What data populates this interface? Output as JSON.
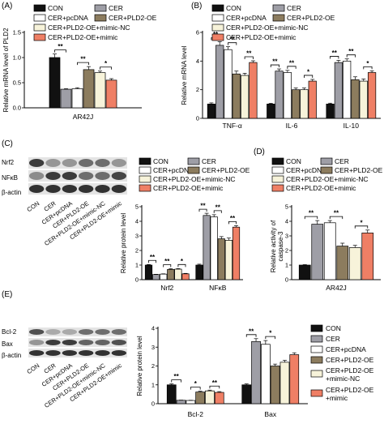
{
  "colors": {
    "CON": "#111111",
    "CER": "#9e9ea6",
    "CER+pcDNA": "#ffffff",
    "CER+PLD2-OE": "#8c7c5e",
    "CER+PLD2-OE+mimic-NC": "#f7f3da",
    "CER+PLD2-OE+mimic": "#ef7f65"
  },
  "groups": [
    "CON",
    "CER",
    "CER+pcDNA",
    "CER+PLD2-OE",
    "CER+PLD2-OE+mimic-NC",
    "CER+PLD2-OE+mimic"
  ],
  "panels": {
    "A": {
      "label": "(A)"
    },
    "B": {
      "label": "(B)"
    },
    "C": {
      "label": "(C)",
      "blot_rows": [
        "Nrf2",
        "NFκB",
        "β-actin"
      ]
    },
    "D": {
      "label": "(D)"
    },
    "E": {
      "label": "(E)",
      "blot_rows": [
        "Bcl-2",
        "Bax",
        "β-actin"
      ],
      "legend_wrapped": [
        "CON",
        "CER",
        "CER+pcDNA",
        "CER+PLD2-OE",
        "CER+PLD2-OE",
        "+mimic-NC",
        "CER+PLD2-OE",
        "+mimic"
      ]
    }
  },
  "blot_columns": [
    "CON",
    "CER",
    "CER+pcDNA",
    "CER+PLD2-OE",
    "CER+PLD2-OE+mimic-NC",
    "CER+PLD2-OE+mimic"
  ],
  "significance": "**",
  "significance_single": "*",
  "chart_data": [
    {
      "id": "A",
      "type": "bar",
      "categories": [
        "AR42J"
      ],
      "series": [
        {
          "name": "CON",
          "values": [
            1.0
          ],
          "err": [
            0.07
          ]
        },
        {
          "name": "CER",
          "values": [
            0.37
          ],
          "err": [
            0.01
          ]
        },
        {
          "name": "CER+pcDNA",
          "values": [
            0.38
          ],
          "err": [
            0.02
          ]
        },
        {
          "name": "CER+PLD2-OE",
          "values": [
            0.76
          ],
          "err": [
            0.06
          ]
        },
        {
          "name": "CER+PLD2-OE+mimic-NC",
          "values": [
            0.7
          ],
          "err": [
            0.03
          ]
        },
        {
          "name": "CER+PLD2-OE+mimic",
          "values": [
            0.55
          ],
          "err": [
            0.03
          ]
        }
      ],
      "ylabel": "Relative mRNA level of PLD2",
      "ylim": [
        0,
        1.5
      ],
      "yticks": [
        "0.0",
        "0.5",
        "1.0",
        "1.5"
      ],
      "annotations": [
        "**",
        "**",
        "*"
      ]
    },
    {
      "id": "B",
      "type": "bar",
      "categories": [
        "TNF-α",
        "IL-6",
        "IL-10"
      ],
      "series": [
        {
          "name": "CON",
          "values": [
            1.0,
            1.0,
            1.0
          ],
          "err": [
            0.08,
            0.05,
            0.06
          ]
        },
        {
          "name": "CER",
          "values": [
            5.1,
            3.3,
            3.9
          ],
          "err": [
            0.25,
            0.15,
            0.15
          ]
        },
        {
          "name": "CER+pcDNA",
          "values": [
            4.8,
            3.2,
            4.0
          ],
          "err": [
            0.2,
            0.15,
            0.15
          ]
        },
        {
          "name": "CER+PLD2-OE",
          "values": [
            3.1,
            2.0,
            2.7
          ],
          "err": [
            0.2,
            0.12,
            0.2
          ]
        },
        {
          "name": "CER+PLD2-OE+mimic-NC",
          "values": [
            3.0,
            2.0,
            2.6
          ],
          "err": [
            0.15,
            0.12,
            0.15
          ]
        },
        {
          "name": "CER+PLD2-OE+mimic",
          "values": [
            3.9,
            2.6,
            3.2
          ],
          "err": [
            0.12,
            0.12,
            0.12
          ]
        }
      ],
      "ylabel": "Relative mRNA level",
      "ylim": [
        0,
        6
      ],
      "yticks": [
        "0",
        "2",
        "4",
        "6"
      ],
      "annotations": [
        "**",
        "**",
        "**",
        "**",
        "**",
        "*",
        "**",
        "**",
        "*"
      ]
    },
    {
      "id": "C",
      "type": "bar",
      "categories": [
        "Nrf2",
        "NFκB"
      ],
      "series": [
        {
          "name": "CON",
          "values": [
            1.0,
            1.0
          ],
          "err": [
            0.04,
            0.06
          ]
        },
        {
          "name": "CER",
          "values": [
            0.35,
            4.4
          ],
          "err": [
            0.02,
            0.15
          ]
        },
        {
          "name": "CER+pcDNA",
          "values": [
            0.38,
            4.3
          ],
          "err": [
            0.02,
            0.15
          ]
        },
        {
          "name": "CER+PLD2-OE",
          "values": [
            0.7,
            2.8
          ],
          "err": [
            0.05,
            0.15
          ]
        },
        {
          "name": "CER+PLD2-OE+mimic-NC",
          "values": [
            0.72,
            2.7
          ],
          "err": [
            0.04,
            0.15
          ]
        },
        {
          "name": "CER+PLD2-OE+mimic",
          "values": [
            0.4,
            3.6
          ],
          "err": [
            0.03,
            0.1
          ]
        }
      ],
      "ylabel": "Relative protein level",
      "ylim": [
        0,
        5
      ],
      "yticks": [
        "0",
        "1",
        "2",
        "3",
        "4",
        "5"
      ],
      "annotations": [
        "**",
        "**",
        "*",
        "**",
        "**",
        "**"
      ]
    },
    {
      "id": "D",
      "type": "bar",
      "categories": [
        "AR42J"
      ],
      "series": [
        {
          "name": "CON",
          "values": [
            1.0
          ],
          "err": [
            0.03
          ]
        },
        {
          "name": "CER",
          "values": [
            3.8
          ],
          "err": [
            0.25
          ]
        },
        {
          "name": "CER+pcDNA",
          "values": [
            3.9
          ],
          "err": [
            0.15
          ]
        },
        {
          "name": "CER+PLD2-OE",
          "values": [
            2.3
          ],
          "err": [
            0.2
          ]
        },
        {
          "name": "CER+PLD2-OE+mimic-NC",
          "values": [
            2.2
          ],
          "err": [
            0.15
          ]
        },
        {
          "name": "CER+PLD2-OE+mimic",
          "values": [
            3.2
          ],
          "err": [
            0.2
          ]
        }
      ],
      "ylabel": "Relative activity of caspase-3",
      "ylim": [
        0,
        5
      ],
      "yticks": [
        "0",
        "1",
        "2",
        "3",
        "4",
        "5"
      ],
      "annotations": [
        "**",
        "**",
        "*"
      ]
    },
    {
      "id": "E",
      "type": "bar",
      "categories": [
        "Bcl-2",
        "Bax"
      ],
      "series": [
        {
          "name": "CON",
          "values": [
            1.0,
            1.0
          ],
          "err": [
            0.05,
            0.05
          ]
        },
        {
          "name": "CER",
          "values": [
            0.18,
            3.3
          ],
          "err": [
            0.01,
            0.15
          ]
        },
        {
          "name": "CER+pcDNA",
          "values": [
            0.17,
            3.15
          ],
          "err": [
            0.01,
            0.2
          ]
        },
        {
          "name": "CER+PLD2-OE",
          "values": [
            0.62,
            2.0
          ],
          "err": [
            0.04,
            0.1
          ]
        },
        {
          "name": "CER+PLD2-OE+mimic-NC",
          "values": [
            0.68,
            2.2
          ],
          "err": [
            0.04,
            0.1
          ]
        },
        {
          "name": "CER+PLD2-OE+mimic",
          "values": [
            0.6,
            2.6
          ],
          "err": [
            0.04,
            0.1
          ]
        }
      ],
      "ylabel": "Relative protein level",
      "ylim": [
        0,
        4
      ],
      "yticks": [
        "0",
        "1",
        "2",
        "3",
        "4"
      ],
      "annotations": [
        "**",
        "*",
        "**",
        "**",
        "*"
      ]
    }
  ]
}
